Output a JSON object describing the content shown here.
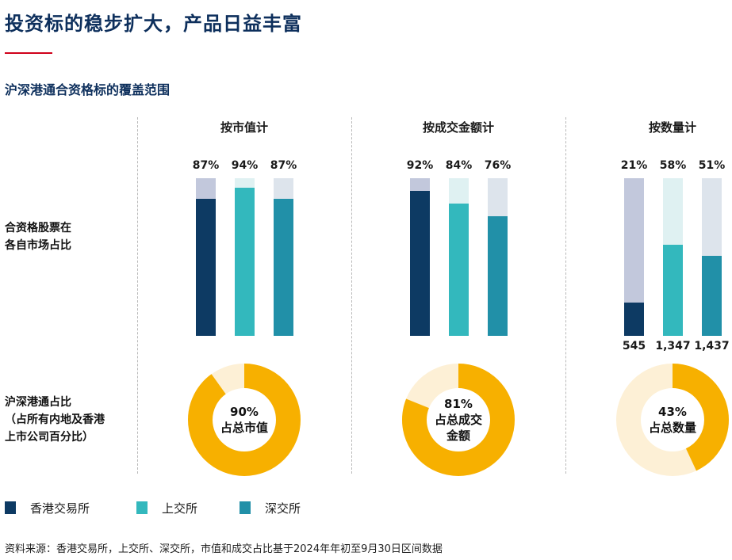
{
  "title": "投资标的稳步扩大，产品日益丰富",
  "subtitle": "沪深港通合资格标的覆盖范围",
  "row_labels": {
    "bars": [
      "合资格股票在",
      "各自市场占比"
    ],
    "donuts": [
      "沪深港通占比",
      "（占所有内地及香港",
      "上市公司百分比）"
    ]
  },
  "legend": [
    {
      "label": "香港交易所",
      "color": "#0d3a63"
    },
    {
      "label": "上交所",
      "color": "#33b8bd"
    },
    {
      "label": "深交所",
      "color": "#2190a8"
    }
  ],
  "source": "资料来源：香港交易所，上交所、深交所，市值和成交占比基于2024年年初至9月30日区间数据",
  "chart_data": [
    {
      "type": "bar",
      "title": "按市值计",
      "categories": [
        "香港交易所",
        "上交所",
        "深交所"
      ],
      "values": [
        87,
        94,
        87
      ],
      "value_labels": [
        "87%",
        "94%",
        "87%"
      ],
      "ylim": [
        0,
        100
      ]
    },
    {
      "type": "bar",
      "title": "按成交金额计",
      "categories": [
        "香港交易所",
        "上交所",
        "深交所"
      ],
      "values": [
        92,
        84,
        76
      ],
      "value_labels": [
        "92%",
        "84%",
        "76%"
      ],
      "ylim": [
        0,
        100
      ]
    },
    {
      "type": "bar",
      "title": "按数量计",
      "categories": [
        "香港交易所",
        "上交所",
        "深交所"
      ],
      "values": [
        21,
        58,
        51
      ],
      "value_labels": [
        "21%",
        "58%",
        "51%"
      ],
      "counts": [
        "545",
        "1,347",
        "1,437"
      ],
      "ylim": [
        0,
        100
      ]
    },
    {
      "type": "pie",
      "value": 90,
      "value_label": "90%",
      "caption": [
        "占总市值"
      ],
      "colors": {
        "fill": "#f7b000",
        "rest": "#fdf0d6"
      }
    },
    {
      "type": "pie",
      "value": 81,
      "value_label": "81%",
      "caption": [
        "占总成交",
        "金额"
      ],
      "colors": {
        "fill": "#f7b000",
        "rest": "#fdf0d6"
      }
    },
    {
      "type": "pie",
      "value": 43,
      "value_label": "43%",
      "caption": [
        "占总数量"
      ],
      "colors": {
        "fill": "#f7b000",
        "rest": "#fdf0d6"
      }
    }
  ]
}
